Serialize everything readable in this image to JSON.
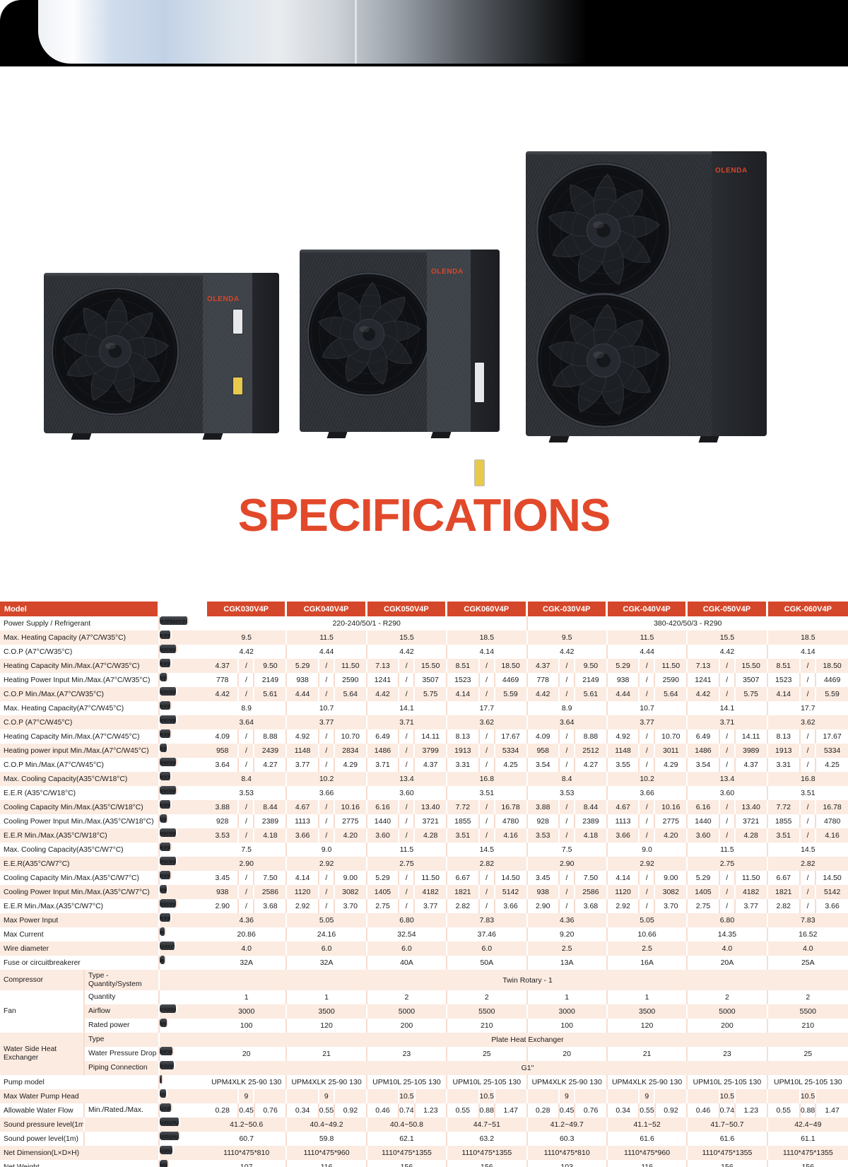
{
  "page": {
    "title": "SPECIFICATIONS"
  },
  "brand": {
    "logo": "OLENDA"
  },
  "table": {
    "model_label": "Model",
    "models": [
      "CGK030V4P",
      "CGK040V4P",
      "CGK050V4P",
      "CGK060V4P",
      "CGK-030V4P",
      "CGK-040V4P",
      "CGK-050V4P",
      "CGK-060V4P"
    ],
    "rows": [
      {
        "label": "Power Supply / Refrigerant",
        "unit": "V/Hz/Ph",
        "type": "two",
        "values": [
          "220-240/50/1 - R290",
          "380-420/50/3 - R290"
        ]
      },
      {
        "label": "Max. Heating Capacity (A7°C/W35°C)",
        "unit": "kW",
        "type": "single",
        "values": [
          "9.5",
          "11.5",
          "15.5",
          "18.5",
          "9.5",
          "11.5",
          "15.5",
          "18.5"
        ]
      },
      {
        "label": "C.O.P (A7°C/W35°C)",
        "unit": "W/W",
        "type": "single",
        "values": [
          "4.42",
          "4.44",
          "4.42",
          "4.14",
          "4.42",
          "4.44",
          "4.42",
          "4.14"
        ]
      },
      {
        "label": "Heating Capacity Min./Max.(A7°C/W35°C)",
        "unit": "kW",
        "type": "triple",
        "values": [
          [
            "4.37",
            "/",
            "9.50"
          ],
          [
            "5.29",
            "/",
            "11.50"
          ],
          [
            "7.13",
            "/",
            "15.50"
          ],
          [
            "8.51",
            "/",
            "18.50"
          ],
          [
            "4.37",
            "/",
            "9.50"
          ],
          [
            "5.29",
            "/",
            "11.50"
          ],
          [
            "7.13",
            "/",
            "15.50"
          ],
          [
            "8.51",
            "/",
            "18.50"
          ]
        ]
      },
      {
        "label": "Heating Power Input Min./Max.(A7°C/W35°C)",
        "unit": "W",
        "type": "triple",
        "values": [
          [
            "778",
            "/",
            "2149"
          ],
          [
            "938",
            "/",
            "2590"
          ],
          [
            "1241",
            "/",
            "3507"
          ],
          [
            "1523",
            "/",
            "4469"
          ],
          [
            "778",
            "/",
            "2149"
          ],
          [
            "938",
            "/",
            "2590"
          ],
          [
            "1241",
            "/",
            "3507"
          ],
          [
            "1523",
            "/",
            "4469"
          ]
        ]
      },
      {
        "label": "C.O.P Min./Max.(A7°C/W35°C)",
        "unit": "W/W",
        "type": "triple",
        "values": [
          [
            "4.42",
            "/",
            "5.61"
          ],
          [
            "4.44",
            "/",
            "5.64"
          ],
          [
            "4.42",
            "/",
            "5.75"
          ],
          [
            "4.14",
            "/",
            "5.59"
          ],
          [
            "4.42",
            "/",
            "5.61"
          ],
          [
            "4.44",
            "/",
            "5.64"
          ],
          [
            "4.42",
            "/",
            "5.75"
          ],
          [
            "4.14",
            "/",
            "5.59"
          ]
        ]
      },
      {
        "label": "Max. Heating Capacity(A7°C/W45°C)",
        "unit": "kW",
        "type": "single",
        "values": [
          "8.9",
          "10.7",
          "14.1",
          "17.7",
          "8.9",
          "10.7",
          "14.1",
          "17.7"
        ]
      },
      {
        "label": "C.O.P (A7°C/W45°C)",
        "unit": "W/W",
        "type": "single",
        "values": [
          "3.64",
          "3.77",
          "3.71",
          "3.62",
          "3.64",
          "3.77",
          "3.71",
          "3.62"
        ]
      },
      {
        "label": "Heating Capacity Min./Max.(A7°C/W45°C)",
        "unit": "kW",
        "type": "triple",
        "values": [
          [
            "4.09",
            "/",
            "8.88"
          ],
          [
            "4.92",
            "/",
            "10.70"
          ],
          [
            "6.49",
            "/",
            "14.11"
          ],
          [
            "8.13",
            "/",
            "17.67"
          ],
          [
            "4.09",
            "/",
            "8.88"
          ],
          [
            "4.92",
            "/",
            "10.70"
          ],
          [
            "6.49",
            "/",
            "14.11"
          ],
          [
            "8.13",
            "/",
            "17.67"
          ]
        ]
      },
      {
        "label": "Heating power input Min./Max.(A7°C/W45°C)",
        "unit": "W",
        "type": "triple",
        "values": [
          [
            "958",
            "/",
            "2439"
          ],
          [
            "1148",
            "/",
            "2834"
          ],
          [
            "1486",
            "/",
            "3799"
          ],
          [
            "1913",
            "/",
            "5334"
          ],
          [
            "958",
            "/",
            "2512"
          ],
          [
            "1148",
            "/",
            "3011"
          ],
          [
            "1486",
            "/",
            "3989"
          ],
          [
            "1913",
            "/",
            "5334"
          ]
        ]
      },
      {
        "label": "C.O.P Min./Max.(A7°C/W45°C)",
        "unit": "W/W",
        "type": "triple",
        "values": [
          [
            "3.64",
            "/",
            "4.27"
          ],
          [
            "3.77",
            "/",
            "4.29"
          ],
          [
            "3.71",
            "/",
            "4.37"
          ],
          [
            "3.31",
            "/",
            "4.25"
          ],
          [
            "3.54",
            "/",
            "4.27"
          ],
          [
            "3.55",
            "/",
            "4.29"
          ],
          [
            "3.54",
            "/",
            "4.37"
          ],
          [
            "3.31",
            "/",
            "4.25"
          ]
        ]
      },
      {
        "label": "Max. Cooling Capacity(A35°C/W18°C)",
        "unit": "kW",
        "type": "single",
        "values": [
          "8.4",
          "10.2",
          "13.4",
          "16.8",
          "8.4",
          "10.2",
          "13.4",
          "16.8"
        ]
      },
      {
        "label": "E.E.R (A35°C/W18°C)",
        "unit": "W/W",
        "type": "single",
        "values": [
          "3.53",
          "3.66",
          "3.60",
          "3.51",
          "3.53",
          "3.66",
          "3.60",
          "3.51"
        ]
      },
      {
        "label": "Cooling Capacity Min./Max.(A35°C/W18°C)",
        "unit": "kW",
        "type": "triple",
        "values": [
          [
            "3.88",
            "/",
            "8.44"
          ],
          [
            "4.67",
            "/",
            "10.16"
          ],
          [
            "6.16",
            "/",
            "13.40"
          ],
          [
            "7.72",
            "/",
            "16.78"
          ],
          [
            "3.88",
            "/",
            "8.44"
          ],
          [
            "4.67",
            "/",
            "10.16"
          ],
          [
            "6.16",
            "/",
            "13.40"
          ],
          [
            "7.72",
            "/",
            "16.78"
          ]
        ]
      },
      {
        "label": "Cooling Power Input Min./Max.(A35°C/W18°C)",
        "unit": "W",
        "type": "triple",
        "values": [
          [
            "928",
            "/",
            "2389"
          ],
          [
            "1113",
            "/",
            "2775"
          ],
          [
            "1440",
            "/",
            "3721"
          ],
          [
            "1855",
            "/",
            "4780"
          ],
          [
            "928",
            "/",
            "2389"
          ],
          [
            "1113",
            "/",
            "2775"
          ],
          [
            "1440",
            "/",
            "3721"
          ],
          [
            "1855",
            "/",
            "4780"
          ]
        ]
      },
      {
        "label": "E.E.R Min./Max.(A35°C/W18°C)",
        "unit": "W/W",
        "type": "triple",
        "values": [
          [
            "3.53",
            "/",
            "4.18"
          ],
          [
            "3.66",
            "/",
            "4.20"
          ],
          [
            "3.60",
            "/",
            "4.28"
          ],
          [
            "3.51",
            "/",
            "4.16"
          ],
          [
            "3.53",
            "/",
            "4.18"
          ],
          [
            "3.66",
            "/",
            "4.20"
          ],
          [
            "3.60",
            "/",
            "4.28"
          ],
          [
            "3.51",
            "/",
            "4.16"
          ]
        ]
      },
      {
        "label": "Max. Cooling Capacity(A35°C/W7°C)",
        "unit": "kW",
        "type": "single",
        "values": [
          "7.5",
          "9.0",
          "11.5",
          "14.5",
          "7.5",
          "9.0",
          "11.5",
          "14.5"
        ]
      },
      {
        "label": "E.E.R(A35°C/W7°C)",
        "unit": "W/W",
        "type": "single",
        "values": [
          "2.90",
          "2.92",
          "2.75",
          "2.82",
          "2.90",
          "2.92",
          "2.75",
          "2.82"
        ]
      },
      {
        "label": "Cooling Capacity Min./Max.(A35°C/W7°C)",
        "unit": "kW",
        "type": "triple",
        "values": [
          [
            "3.45",
            "/",
            "7.50"
          ],
          [
            "4.14",
            "/",
            "9.00"
          ],
          [
            "5.29",
            "/",
            "11.50"
          ],
          [
            "6.67",
            "/",
            "14.50"
          ],
          [
            "3.45",
            "/",
            "7.50"
          ],
          [
            "4.14",
            "/",
            "9.00"
          ],
          [
            "5.29",
            "/",
            "11.50"
          ],
          [
            "6.67",
            "/",
            "14.50"
          ]
        ]
      },
      {
        "label": "Cooling Power Input Min./Max.(A35°C/W7°C)",
        "unit": "W",
        "type": "triple",
        "values": [
          [
            "938",
            "/",
            "2586"
          ],
          [
            "1120",
            "/",
            "3082"
          ],
          [
            "1405",
            "/",
            "4182"
          ],
          [
            "1821",
            "/",
            "5142"
          ],
          [
            "938",
            "/",
            "2586"
          ],
          [
            "1120",
            "/",
            "3082"
          ],
          [
            "1405",
            "/",
            "4182"
          ],
          [
            "1821",
            "/",
            "5142"
          ]
        ]
      },
      {
        "label": "E.E.R Min./Max.(A35°C/W7°C)",
        "unit": "W/W",
        "type": "triple",
        "values": [
          [
            "2.90",
            "/",
            "3.68"
          ],
          [
            "2.92",
            "/",
            "3.70"
          ],
          [
            "2.75",
            "/",
            "3.77"
          ],
          [
            "2.82",
            "/",
            "3.66"
          ],
          [
            "2.90",
            "/",
            "3.68"
          ],
          [
            "2.92",
            "/",
            "3.70"
          ],
          [
            "2.75",
            "/",
            "3.77"
          ],
          [
            "2.82",
            "/",
            "3.66"
          ]
        ]
      },
      {
        "label": "Max Power Input",
        "unit": "kW",
        "type": "single",
        "values": [
          "4.36",
          "5.05",
          "6.80",
          "7.83",
          "4.36",
          "5.05",
          "6.80",
          "7.83"
        ]
      },
      {
        "label": "Max Current",
        "unit": "A",
        "type": "single",
        "values": [
          "20.86",
          "24.16",
          "32.54",
          "37.46",
          "9.20",
          "10.66",
          "14.35",
          "16.52"
        ]
      },
      {
        "label": "Wire diameter",
        "unit": "mm²",
        "type": "single",
        "values": [
          "4.0",
          "6.0",
          "6.0",
          "6.0",
          "2.5",
          "2.5",
          "4.0",
          "4.0"
        ]
      },
      {
        "label": "Fuse or circuitbreakerer",
        "unit": "A",
        "type": "single",
        "values": [
          "32A",
          "32A",
          "40A",
          "50A",
          "13A",
          "16A",
          "20A",
          "25A"
        ]
      },
      {
        "group": "Compressor",
        "span": 1,
        "sub": "Type -\nQuantity/System",
        "unit": "",
        "type": "full",
        "values": [
          "Twin Rotary - 1"
        ],
        "tall": true
      },
      {
        "group": "Fan",
        "span": 3,
        "sub": "Quantity",
        "unit": "",
        "type": "single",
        "values": [
          "1",
          "1",
          "2",
          "2",
          "1",
          "1",
          "2",
          "2"
        ]
      },
      {
        "cont": true,
        "sub": "Airflow",
        "unit": "m3/h",
        "type": "single",
        "values": [
          "3000",
          "3500",
          "5000",
          "5500",
          "3000",
          "3500",
          "5000",
          "5500"
        ]
      },
      {
        "cont": true,
        "sub": "Rated power",
        "unit": "W",
        "type": "single",
        "values": [
          "100",
          "120",
          "200",
          "210",
          "100",
          "120",
          "200",
          "210"
        ]
      },
      {
        "group": "Water Side Heat\nExchanger",
        "span": 3,
        "sub": "Type",
        "unit": "",
        "type": "full",
        "values": [
          "Plate Heat Exchanger"
        ]
      },
      {
        "cont": true,
        "sub": "Water Pressure Drop",
        "unit": "kPa",
        "type": "single",
        "values": [
          "20",
          "21",
          "23",
          "25",
          "20",
          "21",
          "23",
          "25"
        ]
      },
      {
        "cont": true,
        "sub": "Piping Connection",
        "unit": "Inch",
        "type": "full",
        "values": [
          "G1\""
        ]
      },
      {
        "label": "Pump model",
        "unit": "/",
        "type": "single",
        "values": [
          "UPM4XLK 25-90 130",
          "UPM4XLK 25-90 130",
          "UPM10L 25-105 130",
          "UPM10L 25-105 130",
          "UPM4XLK 25-90 130",
          "UPM4XLK 25-90 130",
          "UPM10L 25-105 130",
          "UPM10L 25-105 130"
        ]
      },
      {
        "label": "Max Water Pump Head",
        "unit": "m",
        "type": "triple",
        "values": [
          [
            "",
            "9",
            ""
          ],
          [
            "",
            "9",
            ""
          ],
          [
            "",
            "10.5",
            ""
          ],
          [
            "",
            "10.5",
            ""
          ],
          [
            "",
            "9",
            ""
          ],
          [
            "",
            "9",
            ""
          ],
          [
            "",
            "10.5",
            ""
          ],
          [
            "",
            "10.5",
            ""
          ]
        ]
      },
      {
        "label": "Allowable Water Flow",
        "sub": "Min./Rated./Max.",
        "unit": "L/S",
        "type": "triple",
        "values": [
          [
            "0.28",
            "0.45",
            "0.76"
          ],
          [
            "0.34",
            "0.55",
            "0.92"
          ],
          [
            "0.46",
            "0.74",
            "1.23"
          ],
          [
            "0.55",
            "0.88",
            "1.47"
          ],
          [
            "0.28",
            "0.45",
            "0.76"
          ],
          [
            "0.34",
            "0.55",
            "0.92"
          ],
          [
            "0.46",
            "0.74",
            "1.23"
          ],
          [
            "0.55",
            "0.88",
            "1.47"
          ]
        ]
      },
      {
        "label": "Sound pressure level(1m)",
        "sub": "",
        "unit": "dB(A)",
        "type": "single",
        "values": [
          "41.2~50.6",
          "40.4~49.2",
          "40.4~50.8",
          "44.7~51",
          "41.2~49.7",
          "41.1~52",
          "41.7~50.7",
          "42.4~49"
        ]
      },
      {
        "label": "Sound power level(1m)",
        "sub": "",
        "unit": "dB(A)",
        "type": "single",
        "values": [
          "60.7",
          "59.8",
          "62.1",
          "63.2",
          "60.3",
          "61.6",
          "61.6",
          "61.1"
        ]
      },
      {
        "label": "Net Dimension(L×D×H)",
        "unit": "mm",
        "type": "single",
        "values": [
          "1110*475*810",
          "1110*475*960",
          "1110*475*1355",
          "1110*475*1355",
          "1110*475*810",
          "1110*475*960",
          "1110*475*1355",
          "1110*475*1355"
        ]
      },
      {
        "label": "Net Weight",
        "unit": "kg",
        "type": "single",
        "values": [
          "107",
          "116",
          "156",
          "156",
          "103",
          "116",
          "156",
          "156"
        ]
      }
    ]
  }
}
